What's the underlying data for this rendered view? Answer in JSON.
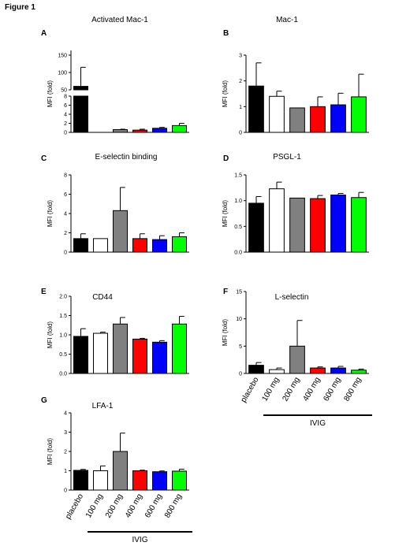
{
  "figure_title": "Figure 1",
  "categories": [
    "placebo",
    "100 mg",
    "200 mg",
    "400 mg",
    "600 mg",
    "800 mg"
  ],
  "group_label": "IVIG",
  "bar_colors": [
    "#000000",
    "#ffffff",
    "#808080",
    "#ff0000",
    "#0000ff",
    "#00ff00"
  ],
  "chart_data": [
    {
      "panel": "A",
      "type": "bar",
      "title": "Activated Mac-1",
      "ylabel": "MFI (fold)",
      "broken_axis": true,
      "ylim_lower": [
        0,
        8
      ],
      "yticks_lower": [
        "0",
        "2",
        "4",
        "6",
        "8"
      ],
      "ylim_upper": [
        50,
        150
      ],
      "yticks_upper": [
        "50",
        "100",
        "150"
      ],
      "values": [
        60,
        0,
        0.6,
        0.5,
        0.9,
        1.5
      ],
      "errors": [
        55,
        0,
        0.1,
        0.2,
        0.2,
        0.5
      ]
    },
    {
      "panel": "B",
      "type": "bar",
      "title": "Mac-1",
      "ylabel": "MFI (fold)",
      "ylim": [
        0,
        3
      ],
      "yticks": [
        "0",
        "1",
        "2",
        "3"
      ],
      "values": [
        1.8,
        1.4,
        0.95,
        1.0,
        1.07,
        1.38
      ],
      "errors": [
        0.9,
        0.2,
        0,
        0.38,
        0.45,
        0.88
      ]
    },
    {
      "panel": "C",
      "type": "bar",
      "title": "E-selectin binding",
      "ylabel": "MFI (fold)",
      "ylim": [
        0,
        8
      ],
      "yticks": [
        "0",
        "2",
        "4",
        "6",
        "8"
      ],
      "values": [
        1.4,
        1.4,
        4.3,
        1.4,
        1.3,
        1.6
      ],
      "errors": [
        0.5,
        0,
        2.4,
        0.5,
        0.4,
        0.4
      ]
    },
    {
      "panel": "D",
      "type": "bar",
      "title": "PSGL-1",
      "ylabel": "MFI (fold)",
      "ylim": [
        0,
        1.5
      ],
      "yticks": [
        "0.0",
        "0.5",
        "1.0",
        "1.5"
      ],
      "values": [
        0.95,
        1.23,
        1.05,
        1.04,
        1.11,
        1.06
      ],
      "errors": [
        0.13,
        0.13,
        0,
        0.06,
        0.03,
        0.1
      ]
    },
    {
      "panel": "E",
      "type": "bar",
      "title": "CD44",
      "ylabel": "MFI (fold)",
      "ylim": [
        0,
        2
      ],
      "yticks": [
        "0.0",
        "0.5",
        "1.0",
        "1.5",
        "2.0"
      ],
      "values": [
        0.96,
        1.04,
        1.28,
        0.89,
        0.81,
        1.28
      ],
      "errors": [
        0.2,
        0.03,
        0.17,
        0.02,
        0.04,
        0.2
      ]
    },
    {
      "panel": "F",
      "type": "bar",
      "title": "L-selectin",
      "ylabel": "MFI (fold)",
      "ylim": [
        0,
        15
      ],
      "yticks": [
        "0",
        "5",
        "10",
        "15"
      ],
      "values": [
        1.5,
        0.7,
        5.0,
        1.0,
        1.0,
        0.6
      ],
      "errors": [
        0.5,
        0.3,
        4.7,
        0.2,
        0.3,
        0.2
      ],
      "show_categories": true
    },
    {
      "panel": "G",
      "type": "bar",
      "title": "LFA-1",
      "ylabel": "MFI (fold)",
      "ylim": [
        0,
        4
      ],
      "yticks": [
        "0",
        "1",
        "2",
        "3",
        "4"
      ],
      "values": [
        1.02,
        1.0,
        2.0,
        1.0,
        0.95,
        0.98
      ],
      "errors": [
        0.05,
        0.25,
        0.95,
        0.03,
        0.04,
        0.1
      ],
      "show_categories": true
    }
  ]
}
